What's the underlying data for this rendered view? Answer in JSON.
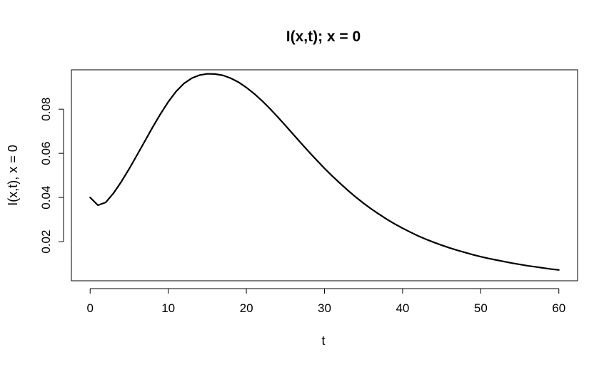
{
  "chart_data": {
    "type": "line",
    "title": "I(x,t); x = 0",
    "xlabel": "t",
    "ylabel": "I(x,t), x = 0",
    "xlim": [
      -2.4,
      62.4
    ],
    "ylim": [
      0.0023,
      0.0978
    ],
    "x_ticks": [
      0,
      10,
      20,
      30,
      40,
      50,
      60
    ],
    "x_tick_labels": [
      "0",
      "10",
      "20",
      "30",
      "40",
      "50",
      "60"
    ],
    "y_ticks": [
      0.02,
      0.04,
      0.06,
      0.08
    ],
    "y_tick_labels": [
      "0.02",
      "0.04",
      "0.06",
      "0.08"
    ],
    "grid": false,
    "series": [
      {
        "x": [
          0,
          1,
          2,
          3,
          4,
          5,
          6,
          7,
          8,
          9,
          10,
          11,
          12,
          13,
          14,
          15,
          16,
          17,
          18,
          19,
          20,
          21,
          22,
          23,
          24,
          25,
          26,
          27,
          28,
          29,
          30,
          31,
          32,
          33,
          34,
          35,
          36,
          37,
          38,
          39,
          40,
          41,
          42,
          43,
          44,
          45,
          46,
          47,
          48,
          49,
          50,
          51,
          52,
          53,
          54,
          55,
          56,
          57,
          58,
          59,
          60
        ],
        "y": [
          0.04,
          0.0365,
          0.0378,
          0.042,
          0.0472,
          0.053,
          0.0592,
          0.0655,
          0.0718,
          0.0778,
          0.0833,
          0.088,
          0.0916,
          0.094,
          0.0954,
          0.096,
          0.0959,
          0.0953,
          0.094,
          0.0922,
          0.0898,
          0.087,
          0.0838,
          0.0803,
          0.0765,
          0.0726,
          0.0686,
          0.0646,
          0.0607,
          0.0569,
          0.0532,
          0.0497,
          0.0464,
          0.0432,
          0.0402,
          0.0374,
          0.0348,
          0.0324,
          0.0301,
          0.028,
          0.0261,
          0.0243,
          0.0226,
          0.0211,
          0.0197,
          0.0184,
          0.0172,
          0.0161,
          0.0151,
          0.0141,
          0.0132,
          0.0124,
          0.0117,
          0.011,
          0.0103,
          0.0097,
          0.0091,
          0.0086,
          0.0081,
          0.0076,
          0.0072
        ]
      }
    ]
  }
}
